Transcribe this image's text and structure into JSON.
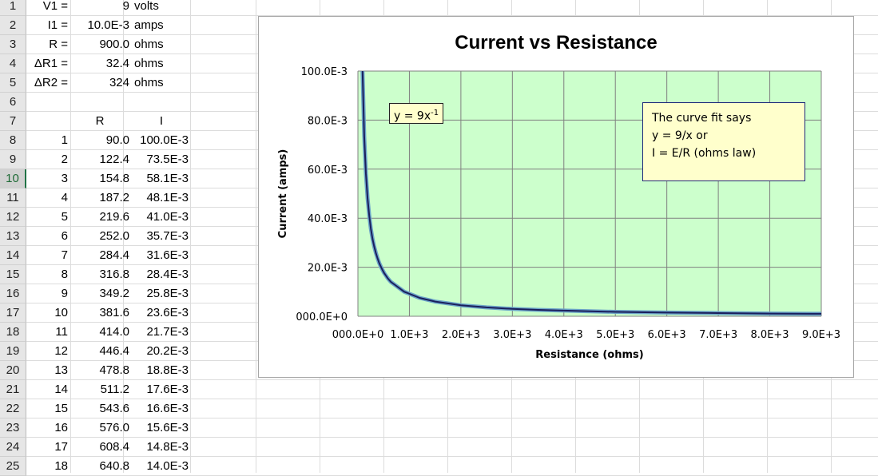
{
  "sheet": {
    "row_numbers": [
      "1",
      "2",
      "3",
      "4",
      "5",
      "6",
      "7",
      "8",
      "9",
      "10",
      "11",
      "12",
      "13",
      "14",
      "15",
      "16",
      "17",
      "18",
      "19",
      "20",
      "21",
      "22",
      "23",
      "24",
      "25"
    ],
    "selected_row": "10",
    "params": [
      {
        "label": "V1 =",
        "value": "9",
        "unit": "volts"
      },
      {
        "label": "I1 =",
        "value": "10.0E-3",
        "unit": "amps"
      },
      {
        "label": "R =",
        "value": "900.0",
        "unit": "ohms"
      },
      {
        "label": "ΔR1 =",
        "value": "32.4",
        "unit": "ohms"
      },
      {
        "label": "ΔR2 =",
        "value": "324",
        "unit": "ohms"
      }
    ],
    "col_headers": {
      "r": "R",
      "i": "I"
    },
    "rows": [
      {
        "n": "1",
        "r": "90.0",
        "i": "100.0E-3"
      },
      {
        "n": "2",
        "r": "122.4",
        "i": "73.5E-3"
      },
      {
        "n": "3",
        "r": "154.8",
        "i": "58.1E-3"
      },
      {
        "n": "4",
        "r": "187.2",
        "i": "48.1E-3"
      },
      {
        "n": "5",
        "r": "219.6",
        "i": "41.0E-3"
      },
      {
        "n": "6",
        "r": "252.0",
        "i": "35.7E-3"
      },
      {
        "n": "7",
        "r": "284.4",
        "i": "31.6E-3"
      },
      {
        "n": "8",
        "r": "316.8",
        "i": "28.4E-3"
      },
      {
        "n": "9",
        "r": "349.2",
        "i": "25.8E-3"
      },
      {
        "n": "10",
        "r": "381.6",
        "i": "23.6E-3"
      },
      {
        "n": "11",
        "r": "414.0",
        "i": "21.7E-3"
      },
      {
        "n": "12",
        "r": "446.4",
        "i": "20.2E-3"
      },
      {
        "n": "13",
        "r": "478.8",
        "i": "18.8E-3"
      },
      {
        "n": "14",
        "r": "511.2",
        "i": "17.6E-3"
      },
      {
        "n": "15",
        "r": "543.6",
        "i": "16.6E-3"
      },
      {
        "n": "16",
        "r": "576.0",
        "i": "15.6E-3"
      },
      {
        "n": "17",
        "r": "608.4",
        "i": "14.8E-3"
      },
      {
        "n": "18",
        "r": "640.8",
        "i": "14.0E-3"
      }
    ]
  },
  "colors": {
    "plot_bg": "#ccffcc",
    "curve_outer": "#6ba3c8",
    "curve_inner": "#1a1f5c",
    "gridline": "#808080",
    "annotation_bg": "#ffffcc"
  },
  "chart_data": {
    "type": "line",
    "title": "Current vs Resistance",
    "xlabel": "Resistance (ohms)",
    "ylabel": "Current (amps)",
    "xlim": [
      0,
      9000
    ],
    "ylim": [
      0,
      0.1
    ],
    "x_ticks": [
      0,
      1000,
      2000,
      3000,
      4000,
      5000,
      6000,
      7000,
      8000,
      9000
    ],
    "x_tick_labels": [
      "000.0E+0",
      "1.0E+3",
      "2.0E+3",
      "3.0E+3",
      "4.0E+3",
      "5.0E+3",
      "6.0E+3",
      "7.0E+3",
      "8.0E+3",
      "9.0E+3"
    ],
    "y_ticks": [
      0,
      0.02,
      0.04,
      0.06,
      0.08,
      0.1
    ],
    "y_tick_labels": [
      "000.0E+0",
      "20.0E-3",
      "40.0E-3",
      "60.0E-3",
      "80.0E-3",
      "100.0E-3"
    ],
    "grid": true,
    "series": [
      {
        "x": [
          90,
          122.4,
          154.8,
          187.2,
          219.6,
          252,
          284.4,
          316.8,
          349.2,
          381.6,
          414,
          446.4,
          478.8,
          511.2,
          543.6,
          576,
          608.4,
          640.8,
          900,
          1200,
          1500,
          2000,
          2500,
          3000,
          3500,
          4000,
          5000,
          6000,
          7000,
          8000,
          9000
        ],
        "y": [
          0.1,
          0.0735,
          0.0581,
          0.0481,
          0.041,
          0.0357,
          0.0316,
          0.0284,
          0.0258,
          0.0236,
          0.0217,
          0.0202,
          0.0188,
          0.0176,
          0.0166,
          0.0156,
          0.0148,
          0.014,
          0.01,
          0.0075,
          0.006,
          0.0045,
          0.0036,
          0.003,
          0.0026,
          0.0023,
          0.0018,
          0.0015,
          0.0013,
          0.0011,
          0.001
        ]
      }
    ],
    "equation_label": {
      "base": "y = 9x",
      "exponent": "-1"
    },
    "note_lines": [
      "The curve fit says",
      "y = 9/x or",
      "I = E/R (ohms law)"
    ]
  }
}
